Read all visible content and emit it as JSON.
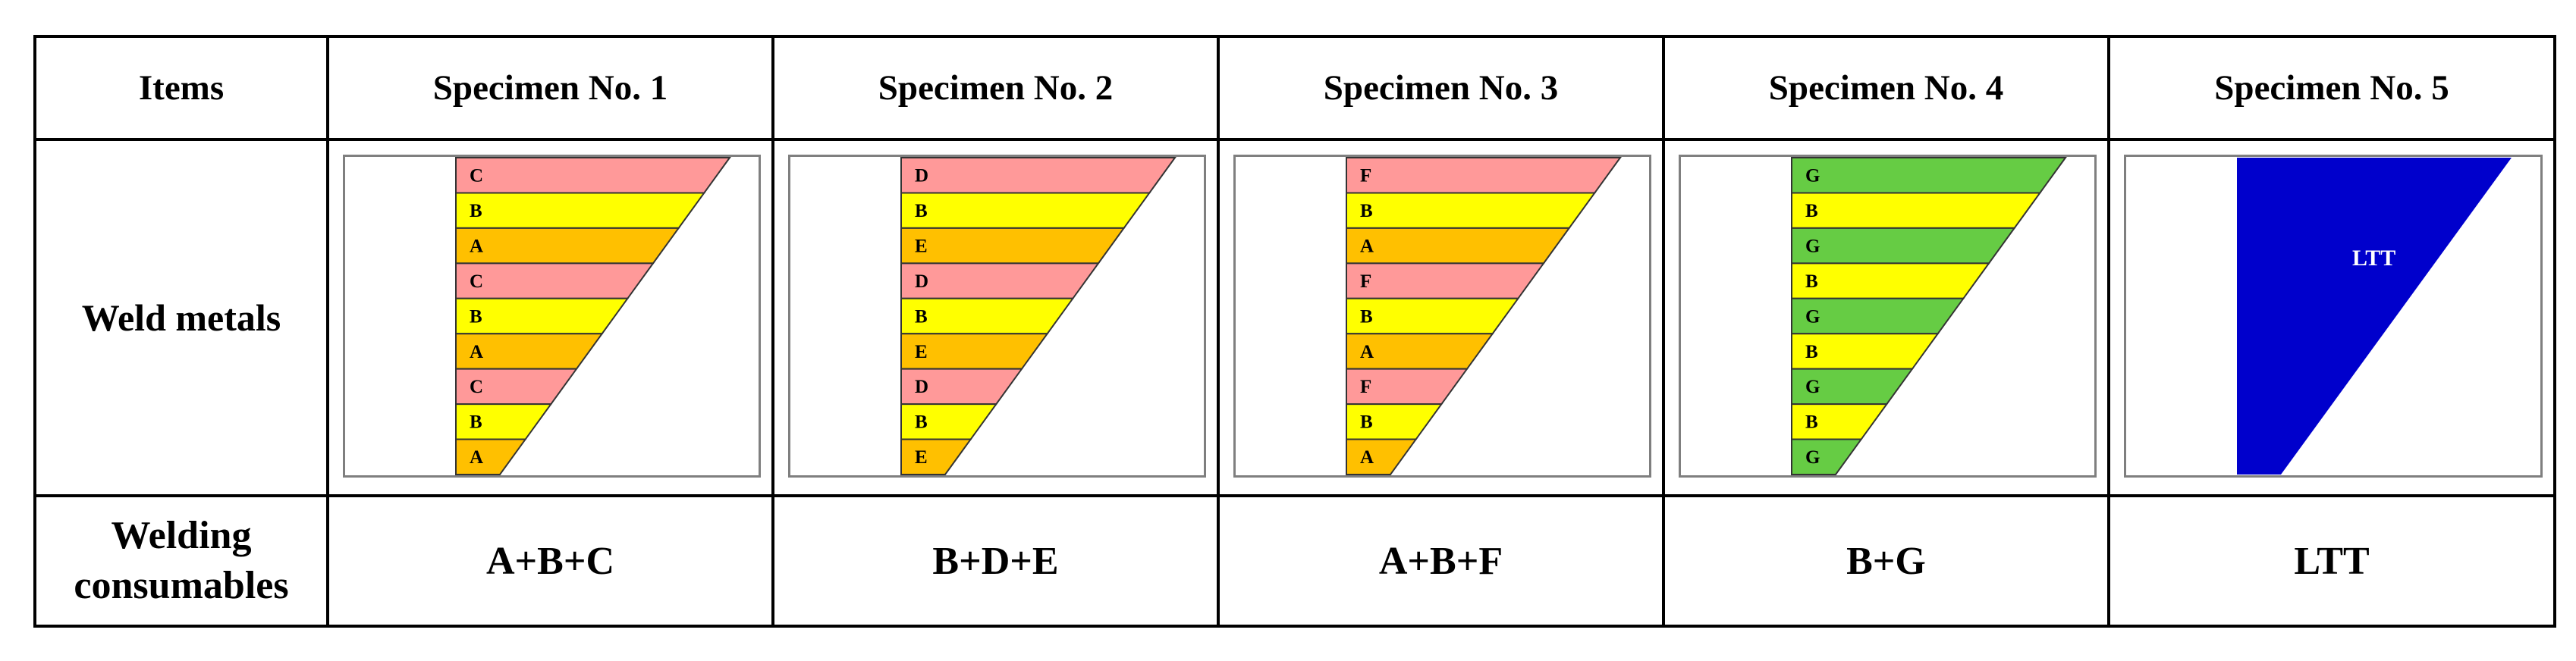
{
  "table": {
    "header": [
      "Items",
      "Specimen No. 1",
      "Specimen No. 2",
      "Specimen No. 3",
      "Specimen No. 4",
      "Specimen No. 5"
    ],
    "row_labels": {
      "weld_metals": "Weld metals",
      "welding_consumables": "Welding consumables"
    },
    "colors": {
      "A": "#ffc000",
      "B": "#ffff00",
      "C": "#ff9999",
      "D": "#ff9999",
      "E": "#ffc000",
      "F": "#ff9999",
      "G": "#66cc44",
      "LTT": "#0000cc"
    },
    "specimens": [
      {
        "layers": [
          "C",
          "B",
          "A",
          "C",
          "B",
          "A",
          "C",
          "B",
          "A"
        ],
        "consumables": "A+B+C"
      },
      {
        "layers": [
          "D",
          "B",
          "E",
          "D",
          "B",
          "E",
          "D",
          "B",
          "E"
        ],
        "consumables": "B+D+E"
      },
      {
        "layers": [
          "F",
          "B",
          "A",
          "F",
          "B",
          "A",
          "F",
          "B",
          "A"
        ],
        "consumables": "A+B+F"
      },
      {
        "layers": [
          "G",
          "B",
          "G",
          "B",
          "G",
          "B",
          "G",
          "B",
          "G"
        ],
        "consumables": "B+G"
      },
      {
        "layers": [
          "LTT"
        ],
        "consumables": "LTT"
      }
    ]
  }
}
